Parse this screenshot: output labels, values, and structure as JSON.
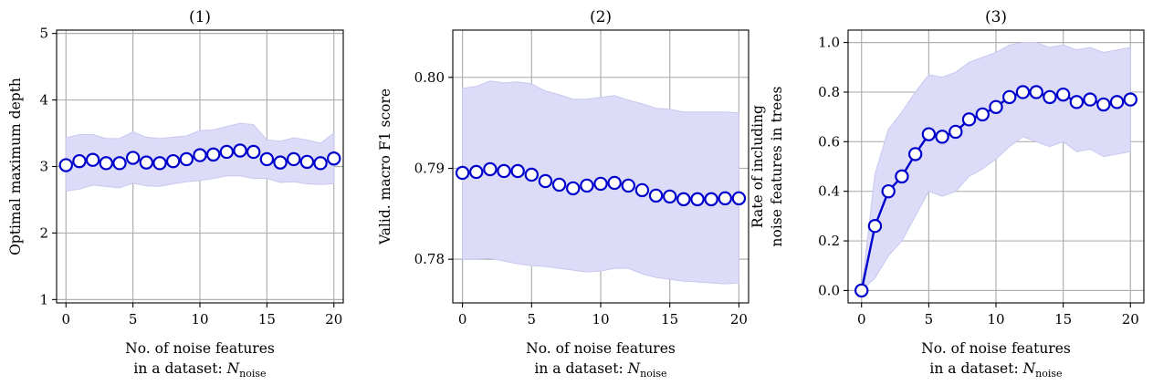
{
  "chart_data": [
    {
      "type": "line",
      "title": "(1)",
      "xlabel_line1": "No. of noise features",
      "xlabel_line2_prefix": "in a dataset: ",
      "xlabel_symbol": "N",
      "xlabel_subscript": "noise",
      "ylabel_lines": [
        "Optimal maximum depth"
      ],
      "xlim": [
        -0.7,
        20.7
      ],
      "ylim": [
        0.95,
        5.05
      ],
      "xticks": [
        0,
        5,
        10,
        15,
        20
      ],
      "xtick_labels": [
        "0",
        "5",
        "10",
        "15",
        "20"
      ],
      "yticks": [
        1,
        2,
        3,
        4,
        5
      ],
      "ytick_labels": [
        "1",
        "2",
        "3",
        "4",
        "5"
      ],
      "grid": true,
      "colors": {
        "line": "#0000cc",
        "band": "#dcdcf8",
        "band_edge": "#c8c8f0"
      },
      "show_line": false,
      "x": [
        0,
        1,
        2,
        3,
        4,
        5,
        6,
        7,
        8,
        9,
        10,
        11,
        12,
        13,
        14,
        15,
        16,
        17,
        18,
        19,
        20
      ],
      "series": [
        {
          "values": [
            3.02,
            3.08,
            3.1,
            3.05,
            3.05,
            3.13,
            3.06,
            3.05,
            3.08,
            3.11,
            3.17,
            3.18,
            3.22,
            3.24,
            3.22,
            3.11,
            3.06,
            3.11,
            3.07,
            3.05,
            3.12
          ],
          "lower": [
            2.63,
            2.66,
            2.72,
            2.7,
            2.68,
            2.75,
            2.71,
            2.7,
            2.74,
            2.77,
            2.79,
            2.82,
            2.86,
            2.86,
            2.82,
            2.82,
            2.76,
            2.77,
            2.74,
            2.73,
            2.74
          ],
          "upper": [
            3.43,
            3.48,
            3.48,
            3.42,
            3.42,
            3.52,
            3.44,
            3.42,
            3.44,
            3.46,
            3.54,
            3.55,
            3.6,
            3.65,
            3.63,
            3.4,
            3.38,
            3.43,
            3.4,
            3.35,
            3.5
          ]
        }
      ]
    },
    {
      "type": "line",
      "title": "(2)",
      "xlabel_line1": "No. of noise features",
      "xlabel_line2_prefix": "in a dataset: ",
      "xlabel_symbol": "N",
      "xlabel_subscript": "noise",
      "ylabel_lines": [
        "Valid. macro F1 score"
      ],
      "xlim": [
        -0.7,
        20.7
      ],
      "ylim": [
        0.7752,
        0.8052
      ],
      "xticks": [
        0,
        5,
        10,
        15,
        20
      ],
      "xtick_labels": [
        "0",
        "5",
        "10",
        "15",
        "20"
      ],
      "yticks": [
        0.78,
        0.79,
        0.8
      ],
      "ytick_labels": [
        "0.78",
        "0.79",
        "0.80"
      ],
      "grid": true,
      "colors": {
        "line": "#0000cc",
        "band": "#dcdcf8",
        "band_edge": "#c8c8f0"
      },
      "show_line": false,
      "x": [
        0,
        1,
        2,
        3,
        4,
        5,
        6,
        7,
        8,
        9,
        10,
        11,
        12,
        13,
        14,
        15,
        16,
        17,
        18,
        19,
        20
      ],
      "series": [
        {
          "values": [
            0.7895,
            0.7896,
            0.7899,
            0.7897,
            0.7897,
            0.7893,
            0.7886,
            0.7882,
            0.7878,
            0.7881,
            0.7883,
            0.7884,
            0.7881,
            0.7876,
            0.787,
            0.7869,
            0.7866,
            0.7866,
            0.7866,
            0.7867,
            0.7867
          ],
          "lower": [
            0.78,
            0.78,
            0.7801,
            0.7798,
            0.7795,
            0.7793,
            0.7792,
            0.779,
            0.7788,
            0.7786,
            0.7787,
            0.779,
            0.779,
            0.7784,
            0.778,
            0.7778,
            0.7776,
            0.7775,
            0.7774,
            0.7773,
            0.7774
          ],
          "upper": [
            0.7988,
            0.799,
            0.7996,
            0.7994,
            0.7995,
            0.7993,
            0.7985,
            0.7981,
            0.7976,
            0.7976,
            0.7978,
            0.798,
            0.7975,
            0.7971,
            0.7966,
            0.7965,
            0.7962,
            0.7962,
            0.7962,
            0.7962,
            0.7961
          ]
        }
      ]
    },
    {
      "type": "line",
      "title": "(3)",
      "xlabel_line1": "No. of noise features",
      "xlabel_line2_prefix": "in a dataset: ",
      "xlabel_symbol": "N",
      "xlabel_subscript": "noise",
      "ylabel_lines": [
        "Rate of including",
        "noise features in trees"
      ],
      "xlim": [
        -1.0,
        21.0
      ],
      "ylim": [
        -0.05,
        1.05
      ],
      "xticks": [
        0,
        5,
        10,
        15,
        20
      ],
      "xtick_labels": [
        "0",
        "5",
        "10",
        "15",
        "20"
      ],
      "yticks": [
        0.0,
        0.2,
        0.4,
        0.6,
        0.8,
        1.0
      ],
      "ytick_labels": [
        "0.0",
        "0.2",
        "0.4",
        "0.6",
        "0.8",
        "1.0"
      ],
      "grid": true,
      "colors": {
        "line": "#0000cc",
        "band": "#dcdcf8",
        "band_edge": "#c8c8f0"
      },
      "show_line": true,
      "x": [
        0,
        1,
        2,
        3,
        4,
        5,
        6,
        7,
        8,
        9,
        10,
        11,
        12,
        13,
        14,
        15,
        16,
        17,
        18,
        19,
        20
      ],
      "series": [
        {
          "values": [
            0.0,
            0.26,
            0.4,
            0.46,
            0.55,
            0.63,
            0.62,
            0.64,
            0.69,
            0.71,
            0.74,
            0.78,
            0.8,
            0.8,
            0.78,
            0.79,
            0.76,
            0.77,
            0.75,
            0.76,
            0.77
          ],
          "lower": [
            0.0,
            0.05,
            0.14,
            0.2,
            0.3,
            0.4,
            0.38,
            0.4,
            0.46,
            0.49,
            0.53,
            0.58,
            0.62,
            0.6,
            0.58,
            0.6,
            0.56,
            0.57,
            0.54,
            0.55,
            0.56
          ],
          "upper": [
            0.0,
            0.47,
            0.65,
            0.72,
            0.8,
            0.87,
            0.86,
            0.88,
            0.92,
            0.94,
            0.96,
            0.99,
            1.0,
            1.0,
            0.98,
            0.99,
            0.97,
            0.98,
            0.96,
            0.97,
            0.98
          ]
        }
      ]
    }
  ]
}
